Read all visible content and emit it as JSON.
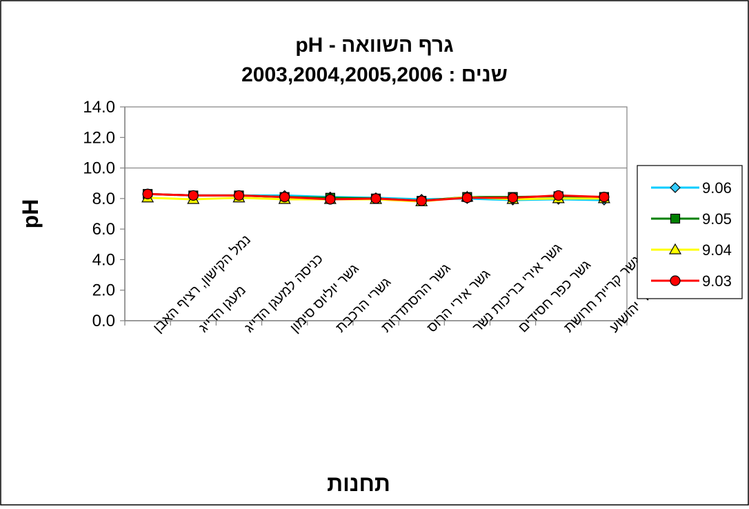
{
  "chart_data": {
    "type": "line",
    "title": "גרף השוואה - pH",
    "subtitle": "שנים  :  2003,2004,2005,2006",
    "xlabel": "תחנות",
    "ylabel": "pH",
    "ylim": [
      0,
      14
    ],
    "ytick_step": 2,
    "ytick_labels": [
      "0.0",
      "2.0",
      "4.0",
      "6.0",
      "8.0",
      "10.0",
      "12.0",
      "14.0"
    ],
    "grid": "horizontal major only (y=10)",
    "legend_position": "right",
    "categories": [
      "נמל הקישון, רציף האבן",
      "מעגן הדייג",
      "כניסה למעגן הדייג",
      "גשר יוליוס סימון",
      "גשרי הרכבת",
      "גשר ההסתדרות",
      "גשר אירי הרוס",
      "גשר אירי בריכות נשר",
      "גשר כפר חסידים",
      "גשר קריית חרושת",
      "גשר כפר יהושוע"
    ],
    "series": [
      {
        "name": "9.06",
        "color": "#00ccff",
        "marker": "diamond",
        "marker_fill": "#33ccff",
        "values": [
          8.3,
          8.2,
          8.2,
          8.2,
          8.1,
          8.05,
          7.95,
          8.0,
          7.9,
          7.95,
          7.9
        ]
      },
      {
        "name": "9.05",
        "color": "#008000",
        "marker": "square",
        "marker_fill": "#008000",
        "values": [
          8.3,
          8.2,
          8.2,
          8.1,
          8.05,
          8.0,
          7.85,
          8.1,
          8.1,
          8.15,
          8.1
        ]
      },
      {
        "name": "9.04",
        "color": "#ffff00",
        "marker": "triangle",
        "marker_fill": "#ffff00",
        "values": [
          8.05,
          7.95,
          8.05,
          7.95,
          7.95,
          7.95,
          7.8,
          8.1,
          7.95,
          8.0,
          8.0
        ]
      },
      {
        "name": "9.03",
        "color": "#ff0000",
        "marker": "circle",
        "marker_fill": "#ff0000",
        "values": [
          8.3,
          8.2,
          8.2,
          8.1,
          7.95,
          8.0,
          7.85,
          8.05,
          8.05,
          8.2,
          8.1
        ]
      }
    ]
  }
}
